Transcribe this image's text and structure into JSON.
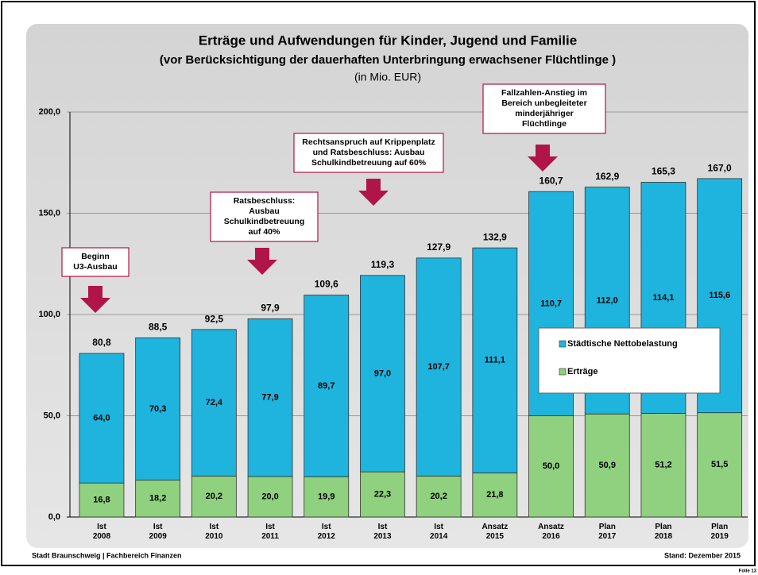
{
  "chart_data": {
    "type": "stacked_bar",
    "title": "Erträge und Aufwendungen für Kinder, Jugend und Familie",
    "subtitle": "(vor Berücksichtigung der dauerhaften Unterbringung erwachsener Flüchtlinge )",
    "unit": "(in Mio. EUR)",
    "categories": [
      "Ist 2008",
      "Ist 2009",
      "Ist 2010",
      "Ist 2011",
      "Ist 2012",
      "Ist 2013",
      "Ist 2014",
      "Ansatz 2015",
      "Ansatz 2016",
      "Plan 2017",
      "Plan 2018",
      "Plan 2019"
    ],
    "series": [
      {
        "name": "Erträge",
        "color": "#8fd17f",
        "values": [
          16.8,
          18.2,
          20.2,
          20.0,
          19.9,
          22.3,
          20.2,
          21.8,
          50.0,
          50.9,
          51.2,
          51.5
        ],
        "value_labels": [
          "16,8",
          "18,2",
          "20,2",
          "20,0",
          "19,9",
          "22,3",
          "20,2",
          "21,8",
          "50,0",
          "50,9",
          "51,2",
          "51,5"
        ]
      },
      {
        "name": "Städtische Nettobelastung",
        "color": "#1eb4dd",
        "values": [
          64.0,
          70.3,
          72.4,
          77.9,
          89.7,
          97.0,
          107.7,
          111.1,
          110.7,
          112.0,
          114.1,
          115.6
        ],
        "value_labels": [
          "64,0",
          "70,3",
          "72,4",
          "77,9",
          "89,7",
          "97,0",
          "107,7",
          "111,1",
          "110,7",
          "112,0",
          "114,1",
          "115,6"
        ]
      }
    ],
    "totals": [
      80.8,
      88.5,
      92.5,
      97.9,
      109.6,
      119.3,
      127.9,
      132.9,
      160.7,
      162.9,
      165.3,
      167.0
    ],
    "total_labels": [
      "80,8",
      "88,5",
      "92,5",
      "97,9",
      "109,6",
      "119,3",
      "127,9",
      "132,9",
      "160,7",
      "162,9",
      "165,3",
      "167,0"
    ],
    "ylim": [
      0,
      200
    ],
    "yticks": [
      {
        "value": 0,
        "label": "0,0"
      },
      {
        "value": 50,
        "label": "50,0"
      },
      {
        "value": 100,
        "label": "100,0"
      },
      {
        "value": 150,
        "label": "150,0"
      },
      {
        "value": 200,
        "label": "200,0"
      }
    ],
    "grid": true,
    "legend": "right",
    "annotations": [
      {
        "lines": [
          "Beginn",
          "U3-Ausbau"
        ]
      },
      {
        "lines": [
          "Ratsbeschluss:",
          "Ausbau",
          "Schulkindbetreuung",
          "auf 40%"
        ]
      },
      {
        "lines": [
          "Rechtsanspruch auf Krippenplatz",
          "und Ratsbeschluss: Ausbau",
          "Schulkindbetreuung auf 60%"
        ]
      },
      {
        "lines": [
          "Fallzahlen-Anstieg im",
          "Bereich unbegleiteter",
          "minderjähriger",
          "Flüchtlinge"
        ]
      }
    ],
    "footer_left": "Stadt Braunschweig | Fachbereich Finanzen",
    "footer_right": "Stand: Dezember 2015",
    "slide": "Folie 13"
  }
}
